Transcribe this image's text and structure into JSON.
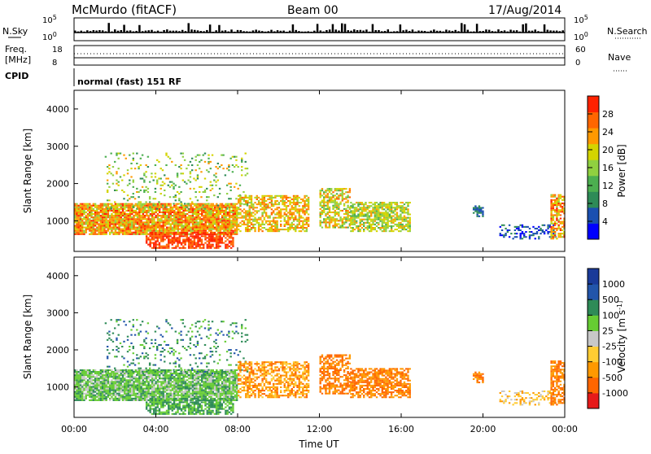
{
  "header": {
    "station": "McMurdo (fitACF)",
    "beam": "Beam 00",
    "date": "17/Aug/2014"
  },
  "status_panels": {
    "nsky_label": "N.Sky",
    "nsky_ticks": [
      "10^5",
      "10^0"
    ],
    "nsearch_label": "N.Search",
    "nsearch_ticks": [
      "10^5",
      "10^0"
    ],
    "freq_label": "Freq.",
    "freq_unit": "[MHz]",
    "freq_ticks": [
      "18",
      "8"
    ],
    "nave_label": "Nave",
    "nave_ticks": [
      "60",
      "0"
    ],
    "cpid_label": "CPID",
    "cpid_value": "normal (fast) 151 RF"
  },
  "colors": {
    "power": [
      "#0000ff",
      "#1a4fb0",
      "#2e8b57",
      "#4caf50",
      "#90d040",
      "#d4d400",
      "#ff9900",
      "#ff6600",
      "#ff2200"
    ],
    "velocity": [
      "#e61a1a",
      "#ff6600",
      "#ff9900",
      "#ffcc33",
      "#c8c8c8",
      "#66cc33",
      "#2e8b57",
      "#2255aa",
      "#1a3a99"
    ],
    "ground_scatter": "#c0c0c0"
  },
  "chart_data": [
    {
      "type": "heatmap",
      "name": "power",
      "ylabel": "Slant Range [km]",
      "yticks": [
        "1000",
        "2000",
        "3000",
        "4000"
      ],
      "ylim": [
        180,
        4500
      ],
      "colorbar_label": "Power [dB]",
      "colorbar_ticks": [
        "4",
        "8",
        "12",
        "16",
        "20",
        "24",
        "28"
      ],
      "colorbar_range": [
        0,
        32
      ]
    },
    {
      "type": "heatmap",
      "name": "velocity",
      "ylabel": "Slant Range [km]",
      "yticks": [
        "1000",
        "2000",
        "3000",
        "4000"
      ],
      "ylim": [
        180,
        4500
      ],
      "colorbar_label": "Velocity [m s^-1]",
      "colorbar_ticks": [
        "-1000",
        "-500",
        "-100",
        "-25",
        "25",
        "100",
        "500",
        "1000"
      ],
      "xlabel": "Time UT",
      "xticks": [
        "00:00",
        "04:00",
        "08:00",
        "12:00",
        "16:00",
        "20:00",
        "00:00"
      ],
      "xlim_hours": [
        0,
        24
      ]
    }
  ]
}
